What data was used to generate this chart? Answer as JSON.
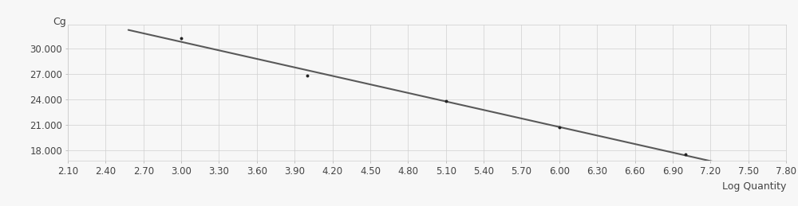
{
  "points_x": [
    3.0,
    4.0,
    5.1,
    6.0,
    7.0
  ],
  "points_y": [
    31.2,
    26.85,
    23.85,
    20.75,
    17.55
  ],
  "line_x_start": 2.58,
  "line_x_end": 7.3,
  "xlabel": "Log Quantity",
  "ylabel": "Cg",
  "xlim": [
    2.1,
    7.8
  ],
  "ylim": [
    16.8,
    32.8
  ],
  "xticks": [
    2.1,
    2.4,
    2.7,
    3.0,
    3.3,
    3.6,
    3.9,
    4.2,
    4.5,
    4.8,
    5.1,
    5.4,
    5.7,
    6.0,
    6.3,
    6.6,
    6.9,
    7.2,
    7.5,
    7.8
  ],
  "xtick_labels": [
    "2.10",
    "2.40",
    "2.70",
    "3.00",
    "3.30",
    "3.60",
    "3.90",
    "4.20",
    "4.50",
    "4.80",
    "5.10",
    "5.40",
    "5.70",
    "6.00",
    "6.30",
    "6.60",
    "6.90",
    "7.20",
    "7.50",
    "7.80"
  ],
  "yticks": [
    18.0,
    21.0,
    24.0,
    27.0,
    30.0
  ],
  "ytick_labels": [
    "18.000",
    "21.000",
    "24.000",
    "27.000",
    "30.000"
  ],
  "line_color": "#595959",
  "point_color": "#222222",
  "bg_color": "#f7f7f7",
  "grid_color": "#d0d0d0",
  "xlabel_fontsize": 9,
  "ylabel_fontsize": 9,
  "tick_fontsize": 8.5
}
